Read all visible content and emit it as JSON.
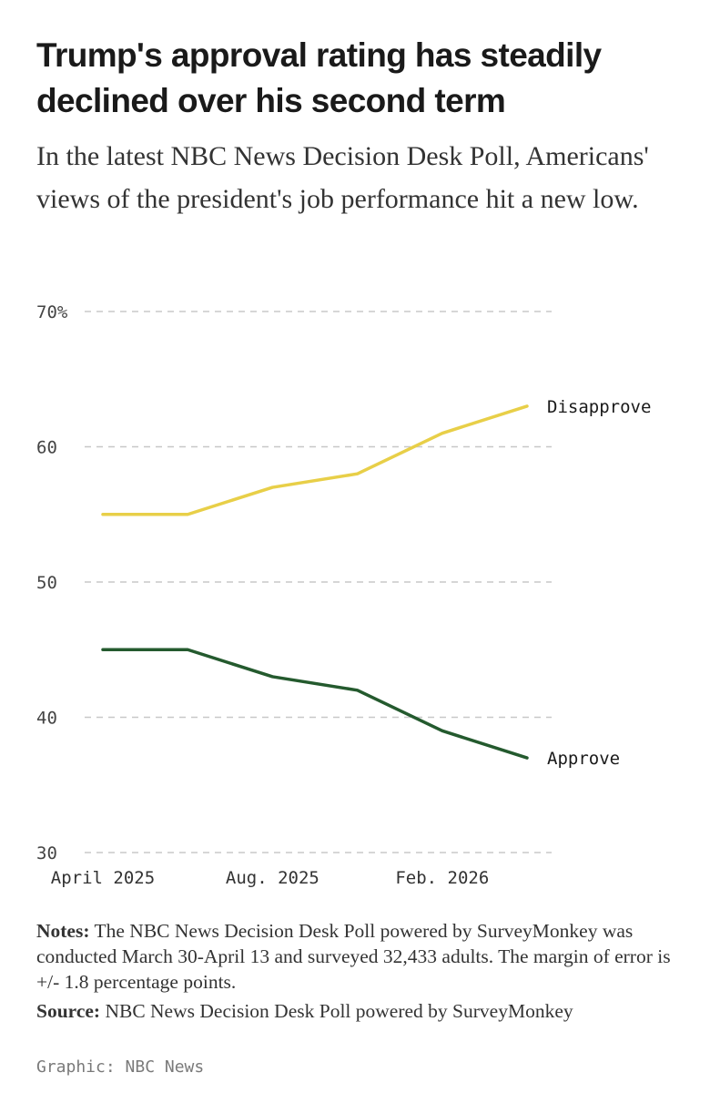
{
  "title": "Trump's approval rating has steadily declined over his second term",
  "subtitle": "In the latest NBC News Decision Desk Poll, Americans' views of the president's job performance hit a new low.",
  "chart_data": {
    "type": "line",
    "x": [
      "April 2025",
      "",
      "Aug. 2025",
      "",
      "Feb. 2026",
      ""
    ],
    "x_tick_labels": [
      "April 2025",
      "Aug. 2025",
      "Feb. 2026"
    ],
    "y_tick_labels": [
      "70%",
      "60",
      "50",
      "40",
      "30"
    ],
    "y_ticks": [
      70,
      60,
      50,
      40,
      30
    ],
    "ylim": [
      30,
      70
    ],
    "grid": true,
    "series": [
      {
        "name": "Disapprove",
        "values": [
          55,
          55,
          57,
          58,
          61,
          63
        ],
        "color": "#e8cf48"
      },
      {
        "name": "Approve",
        "values": [
          45,
          45,
          43,
          42,
          39,
          37
        ],
        "color": "#245a2e"
      }
    ]
  },
  "notes": {
    "label": "Notes:",
    "text": " The NBC News Decision Desk Poll powered by SurveyMonkey was conducted March 30-April 13 and surveyed 32,433 adults. The margin of error is +/- 1.8 percentage points."
  },
  "source": {
    "label": "Source:",
    "text": " NBC News Decision Desk Poll powered by SurveyMonkey"
  },
  "credit": "Graphic: NBC News"
}
